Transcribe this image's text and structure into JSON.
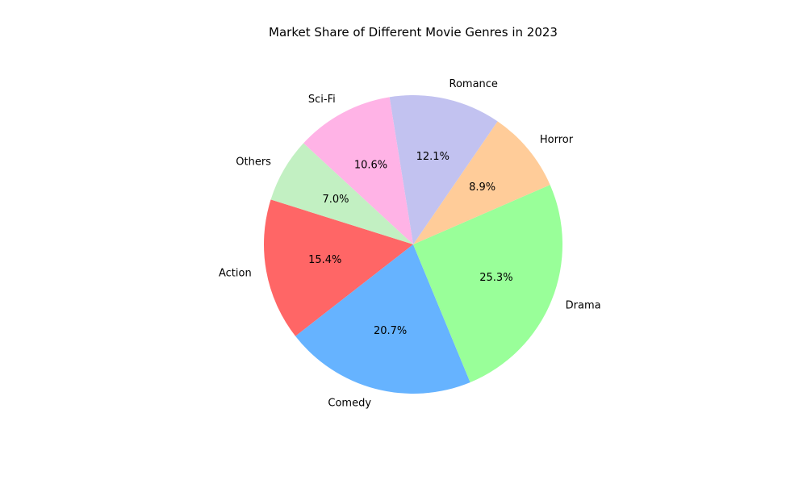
{
  "chart_data": {
    "type": "pie",
    "title": "Market Share of Different Movie Genres in 2023",
    "start_angle_deg": 162.5,
    "direction": "counterclockwise",
    "slices": [
      {
        "label": "Action",
        "value": 15.4,
        "pct_text": "15.4%",
        "color": "#ff6666"
      },
      {
        "label": "Comedy",
        "value": 20.7,
        "pct_text": "20.7%",
        "color": "#66b3ff"
      },
      {
        "label": "Drama",
        "value": 25.3,
        "pct_text": "25.3%",
        "color": "#99ff99"
      },
      {
        "label": "Horror",
        "value": 8.9,
        "pct_text": "8.9%",
        "color": "#ffcc99"
      },
      {
        "label": "Romance",
        "value": 12.1,
        "pct_text": "12.1%",
        "color": "#c2c2f0"
      },
      {
        "label": "Sci-Fi",
        "value": 10.6,
        "pct_text": "10.6%",
        "color": "#ffb3e6"
      },
      {
        "label": "Others",
        "value": 7.0,
        "pct_text": "7.0%",
        "color": "#c2f0c2"
      }
    ]
  }
}
